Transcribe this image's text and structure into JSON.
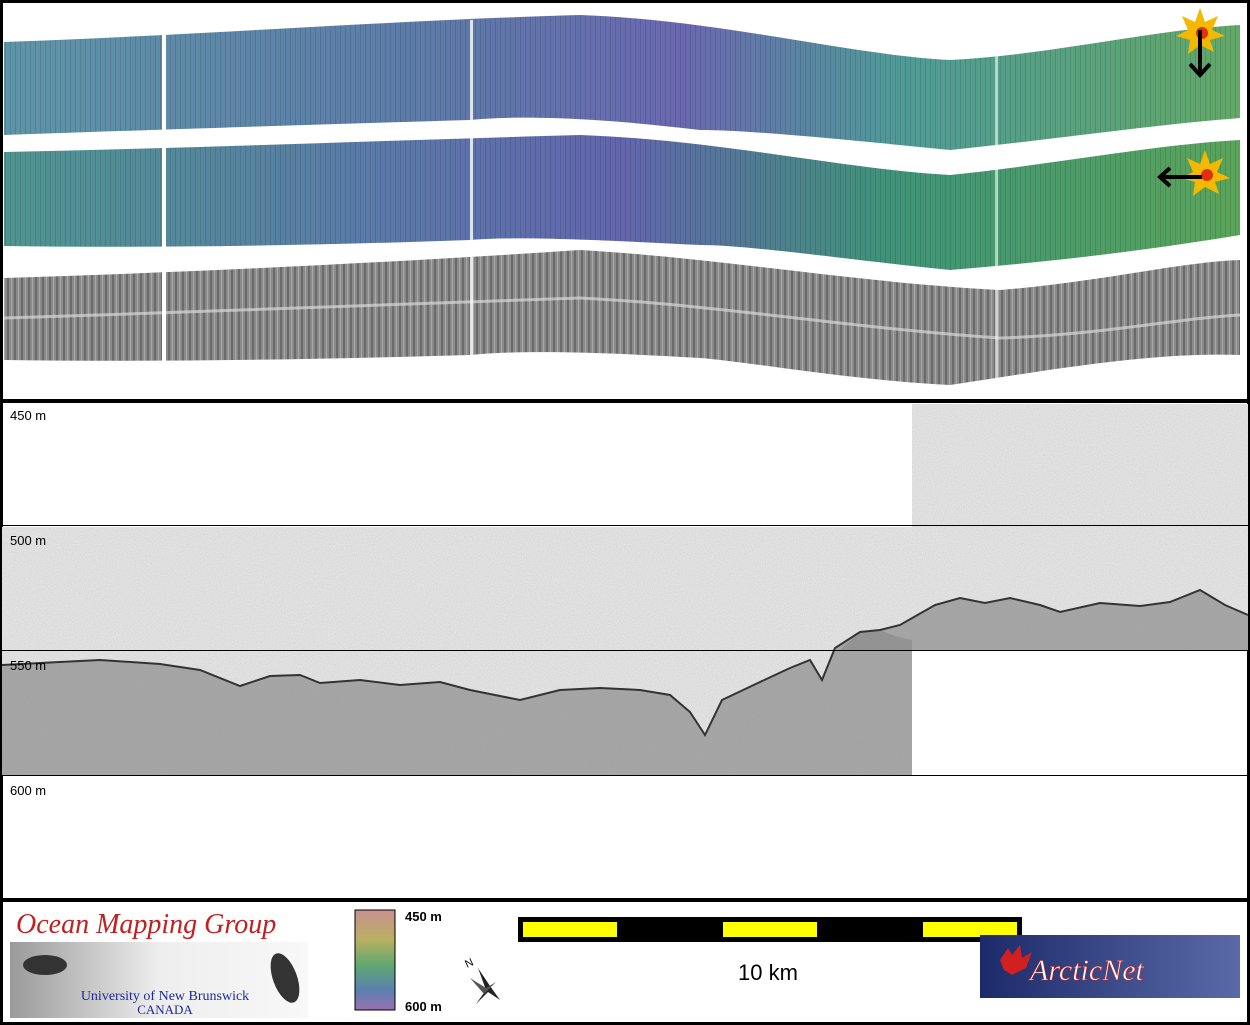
{
  "imagery": {
    "depth_labels": [
      "450 m",
      "500 m",
      "550 m",
      "600 m"
    ]
  },
  "footer": {
    "ocean_mapping_group": {
      "title": "Ocean Mapping Group",
      "university": "University of New Brunswick",
      "country": "CANADA"
    },
    "color_scale": {
      "top": "450 m",
      "bottom": "600 m"
    },
    "north_label": "N",
    "scale_bar": "10 km",
    "arcticnet": "ArcticNet"
  }
}
